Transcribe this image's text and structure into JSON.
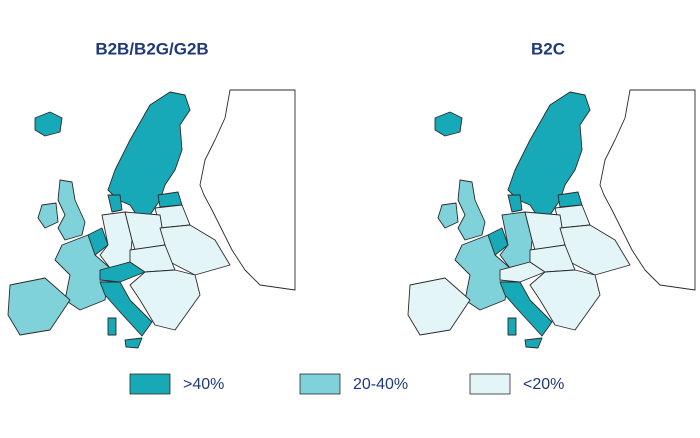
{
  "panels": [
    {
      "title": "B2B/B2G/G2B"
    },
    {
      "title": "B2C"
    }
  ],
  "legend": [
    {
      "label": ">40%",
      "color": "#17a9b7"
    },
    {
      "label": "20-40%",
      "color": "#7fd2da"
    },
    {
      "label": "<20%",
      "color": "#e4f5f7"
    }
  ]
}
